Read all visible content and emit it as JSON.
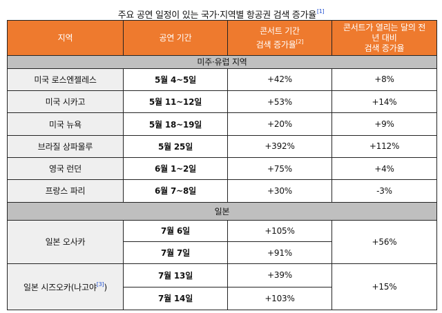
{
  "title": {
    "text": "주요 공연 일정이 있는 국가·지역별 항공권 검색 증가율",
    "footnote": "[1]"
  },
  "columns": {
    "region": "지역",
    "period": "공연 기간",
    "concert_line1": "콘서트 기간",
    "concert_line2": "검색 증가율",
    "concert_footnote": "[2]",
    "prevyear_line1": "콘서트가 열리는 달의 전",
    "prevyear_line2": "년 대비",
    "prevyear_line3": "검색 증가율"
  },
  "sections": {
    "americas_europe": "미주·유럽 지역",
    "japan": "일본"
  },
  "rows": [
    {
      "region": "미국 로스엔젤레스",
      "period": "5월 4~5일",
      "concert": "+42%",
      "prevyear": "+8%"
    },
    {
      "region": "미국 시카고",
      "period": "5월 11~12일",
      "concert": "+53%",
      "prevyear": "+14%"
    },
    {
      "region": "미국 뉴욕",
      "period": "5월 18~19일",
      "concert": "+20%",
      "prevyear": "+9%"
    },
    {
      "region": "브라질 상파울루",
      "period": "5월 25일",
      "concert": "+392%",
      "prevyear": "+112%"
    },
    {
      "region": "영국 런던",
      "period": "6월 1~2일",
      "concert": "+75%",
      "prevyear": "+4%"
    },
    {
      "region": "프랑스 파리",
      "period": "6월 7~8일",
      "concert": "+30%",
      "prevyear": "-3%"
    }
  ],
  "japan_rows": [
    {
      "region": "일본 오사카",
      "prevyear": "+56%",
      "dates": [
        {
          "period": "7월 6일",
          "concert": "+105%"
        },
        {
          "period": "7월 7일",
          "concert": "+91%"
        }
      ]
    },
    {
      "region": "일본 시즈오카(나고야",
      "region_suffix": ")",
      "region_footnote": "[3]",
      "prevyear": "+15%",
      "dates": [
        {
          "period": "7월 13일",
          "concert": "+39%"
        },
        {
          "period": "7월 14일",
          "concert": "+103%"
        }
      ]
    }
  ],
  "colors": {
    "header_bg": "#ee7a2e",
    "section_bg": "#bfbfbf",
    "region_bg": "#efefef",
    "footnote": "#1f4fd0"
  }
}
